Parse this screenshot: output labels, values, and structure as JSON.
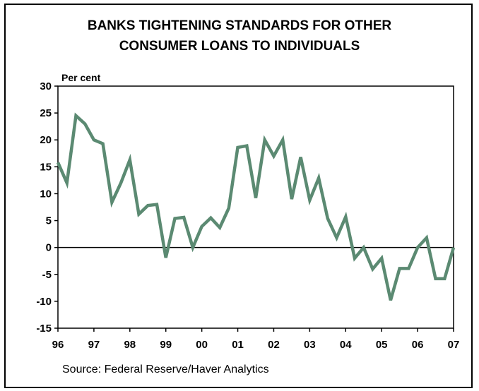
{
  "chart_data": {
    "type": "line",
    "title_lines": [
      "BANKS TIGHTENING STANDARDS FOR OTHER",
      "CONSUMER LOANS TO INDIVIDUALS"
    ],
    "ylabel": "Per cent",
    "ylim": [
      -15,
      30
    ],
    "yticks": [
      30,
      25,
      20,
      15,
      10,
      5,
      0,
      -5,
      -10,
      -15
    ],
    "xlim": [
      1996,
      2007
    ],
    "xticks": [
      "96",
      "97",
      "98",
      "99",
      "00",
      "01",
      "02",
      "03",
      "04",
      "05",
      "06",
      "07"
    ],
    "zero_line": true,
    "source": "Source: Federal Reserve/Haver Analytics",
    "line_color": "#5b8a72",
    "series": [
      {
        "x": [
          1996.0,
          1996.25,
          1996.5,
          1996.75,
          1997.0,
          1997.25,
          1997.5,
          1997.75,
          1998.0,
          1998.25,
          1998.5,
          1998.75,
          1999.0,
          1999.25,
          1999.5,
          1999.75,
          2000.0,
          2000.25,
          2000.5,
          2000.75,
          2001.0,
          2001.25,
          2001.5,
          2001.75,
          2002.0,
          2002.25,
          2002.5,
          2002.75,
          2003.0,
          2003.25,
          2003.5,
          2003.75,
          2004.0,
          2004.25,
          2004.5,
          2004.75,
          2005.0,
          2005.25,
          2005.5,
          2005.75,
          2006.0,
          2006.25,
          2006.5,
          2006.75,
          2007.0
        ],
        "values": [
          15.8,
          12.0,
          24.5,
          23.0,
          20.0,
          19.3,
          8.4,
          12.0,
          16.3,
          6.2,
          7.8,
          8.0,
          -1.9,
          5.4,
          5.6,
          0.0,
          3.9,
          5.5,
          3.7,
          7.3,
          18.6,
          18.9,
          9.2,
          20.0,
          17.0,
          20.0,
          9.0,
          16.8,
          8.8,
          12.9,
          5.4,
          1.8,
          5.7,
          -2.0,
          0.0,
          -4.0,
          -2.0,
          -9.8,
          -3.9,
          -3.9,
          0.0,
          1.8,
          -5.8,
          -5.8,
          0.0
        ]
      }
    ]
  }
}
